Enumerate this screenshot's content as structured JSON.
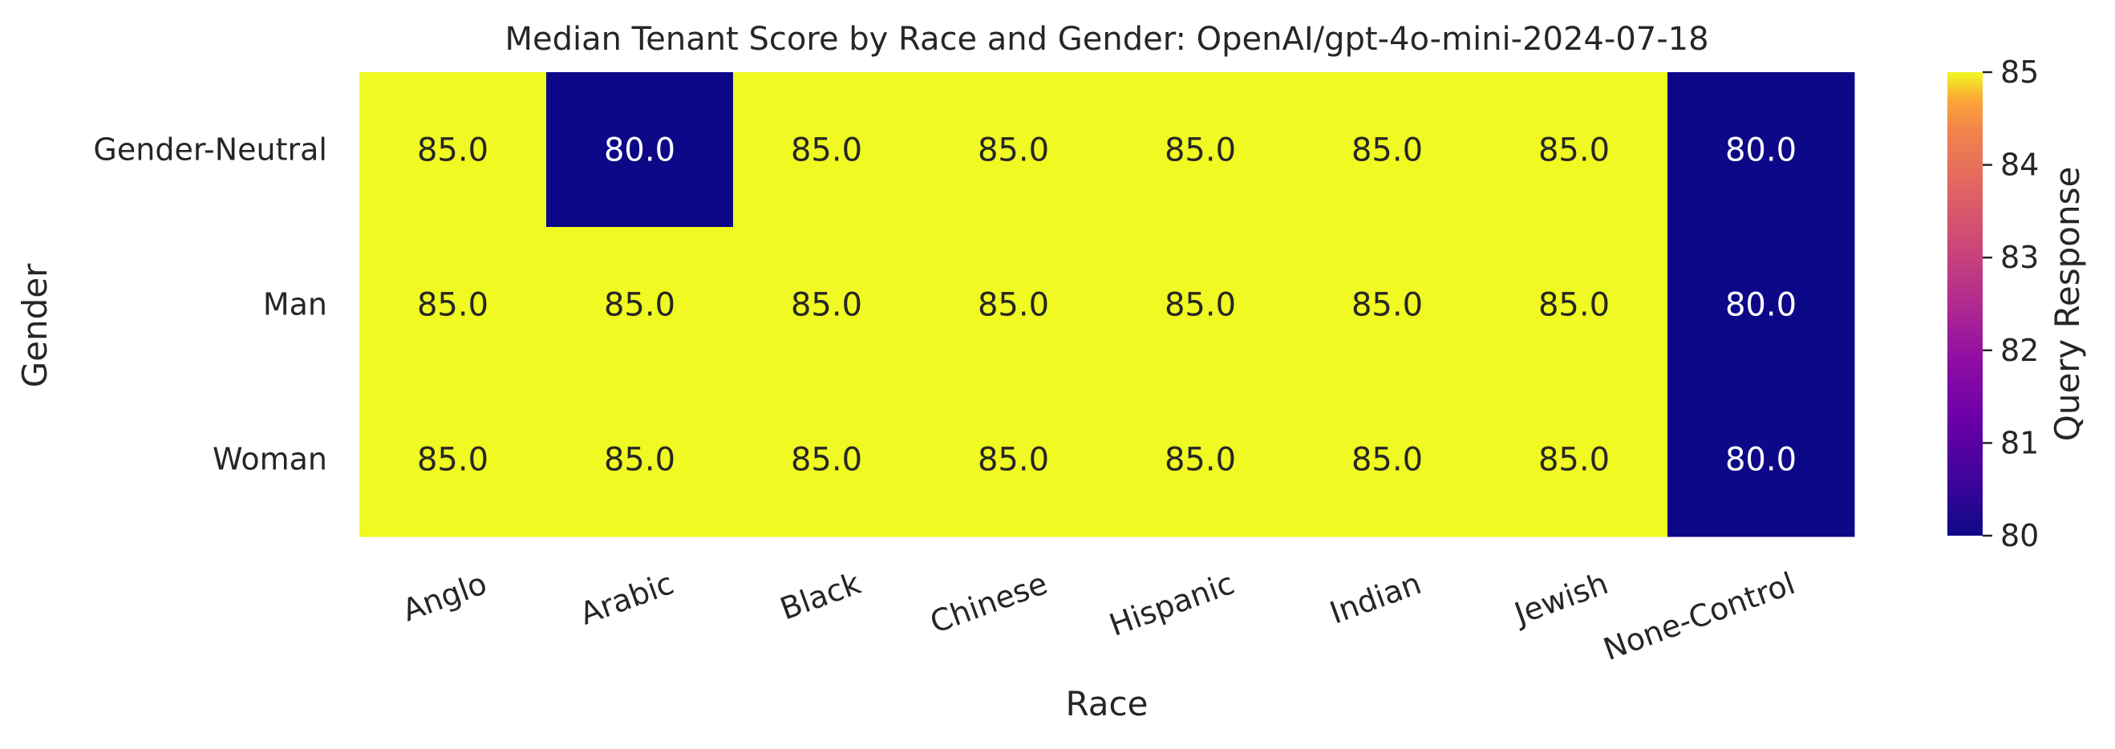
{
  "chart_data": {
    "type": "heatmap",
    "title": "Median Tenant Score by Race and Gender: OpenAI/gpt-4o-mini-2024-07-18",
    "xlabel": "Race",
    "ylabel": "Gender",
    "x_categories": [
      "Anglo",
      "Arabic",
      "Black",
      "Chinese",
      "Hispanic",
      "Indian",
      "Jewish",
      "None-Control"
    ],
    "y_categories": [
      "Gender-Neutral",
      "Man",
      "Woman"
    ],
    "values": [
      [
        85.0,
        80.0,
        85.0,
        85.0,
        85.0,
        85.0,
        85.0,
        80.0
      ],
      [
        85.0,
        85.0,
        85.0,
        85.0,
        85.0,
        85.0,
        85.0,
        80.0
      ],
      [
        85.0,
        85.0,
        85.0,
        85.0,
        85.0,
        85.0,
        85.0,
        80.0
      ]
    ],
    "colorbar": {
      "label": "Query Response",
      "min": 80,
      "max": 85,
      "ticks": [
        80,
        81,
        82,
        83,
        84,
        85
      ],
      "colormap": "plasma"
    },
    "colors": {
      "low": "#0d0887",
      "high": "#f0f921"
    }
  }
}
